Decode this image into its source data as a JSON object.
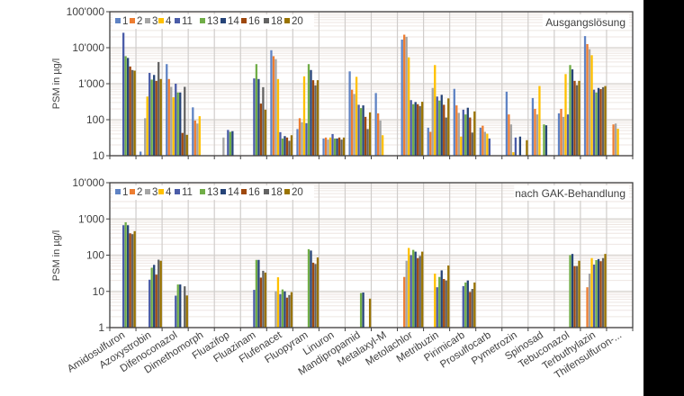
{
  "y_axis_label": "PSM in µg/l",
  "series_colors": {
    "1": "#5f83c4",
    "2": "#ed7d31",
    "3": "#a5a5a5",
    "4": "#ffc000",
    "11": "#4a5ca8",
    "13": "#70ad47",
    "14": "#264478",
    "16": "#9e480e",
    "18": "#636363",
    "20": "#997300"
  },
  "chart_data": [
    {
      "type": "bar",
      "title": "Ausgangslösung",
      "ylabel": "PSM in µg/l",
      "yscale": "log",
      "ylim": [
        10,
        100000
      ],
      "yticks": [
        "100'000",
        "10'000",
        "1'000",
        "100",
        "10"
      ],
      "grid": true,
      "legend": "top-left",
      "categories": [
        "Amidosulfuron",
        "Azoxystrobin",
        "Difenoconazol",
        "Dimethomorph",
        "Fluazifop",
        "Fluazinam",
        "Flufenacet",
        "Fluopyram",
        "Linuron",
        "Mandipropamid",
        "Metalaxyl-M",
        "Metolachlor",
        "Metribuzin",
        "Pirimicarb",
        "Prosulfocarb",
        "Pymetrozin",
        "Spinosad",
        "Tebuconazol",
        "Terbuthylazin",
        "Thifensulfuron-..."
      ],
      "series": [
        {
          "name": "1",
          "values": [
            null,
            13,
            3500,
            220,
            null,
            null,
            8500,
            55,
            30,
            2200,
            550,
            16800,
            60,
            720,
            60,
            600,
            400,
            150,
            21000,
            null
          ]
        },
        {
          "name": "2",
          "values": [
            null,
            null,
            1350,
            95,
            null,
            null,
            5800,
            110,
            32,
            680,
            150,
            23000,
            46,
            250,
            68,
            140,
            200,
            200,
            12600,
            74
          ]
        },
        {
          "name": "3",
          "values": [
            null,
            110,
            820,
            78,
            32,
            null,
            4800,
            85,
            28,
            520,
            95,
            20000,
            760,
            155,
            46,
            74,
            140,
            120,
            9100,
            78
          ]
        },
        {
          "name": "4",
          "values": [
            null,
            440,
            420,
            125,
            null,
            null,
            1350,
            1600,
            32,
            1550,
            37,
            5400,
            3300,
            34,
            41,
            12.5,
            860,
            1850,
            6200,
            56
          ]
        },
        {
          "name": "11",
          "values": [
            26000,
            2000,
            1000,
            null,
            52,
            1400,
            45,
            80,
            40,
            260,
            null,
            350,
            440,
            190,
            30,
            32,
            null,
            140,
            680,
            null
          ]
        },
        {
          "name": "13",
          "values": [
            5800,
            1300,
            570,
            null,
            46,
            3500,
            30,
            3500,
            30,
            210,
            null,
            270,
            340,
            140,
            null,
            null,
            74,
            3300,
            570,
            null
          ]
        },
        {
          "name": "14",
          "values": [
            5200,
            1750,
            570,
            null,
            48,
            1350,
            35,
            2400,
            30,
            250,
            null,
            310,
            490,
            215,
            null,
            34,
            70,
            2500,
            760,
            null
          ]
        },
        {
          "name": "16",
          "values": [
            3000,
            1200,
            43,
            null,
            null,
            280,
            32,
            1250,
            32,
            120,
            null,
            270,
            260,
            115,
            null,
            null,
            null,
            1200,
            710,
            null
          ]
        },
        {
          "name": "18",
          "values": [
            2400,
            4000,
            820,
            null,
            null,
            800,
            26,
            900,
            28,
            55,
            null,
            240,
            115,
            44,
            null,
            null,
            null,
            910,
            800,
            null
          ]
        },
        {
          "name": "20",
          "values": [
            2300,
            1350,
            38,
            null,
            null,
            190,
            37,
            1250,
            32,
            160,
            null,
            315,
            390,
            170,
            null,
            27,
            null,
            1200,
            860,
            null
          ]
        }
      ]
    },
    {
      "type": "bar",
      "title": "nach GAK-Behandlung",
      "ylabel": "PSM in µg/l",
      "yscale": "log",
      "ylim": [
        1,
        10000
      ],
      "yticks": [
        "10'000",
        "1'000",
        "100",
        "10",
        "1"
      ],
      "grid": true,
      "legend": "top-left",
      "categories": [
        "Amidosulfuron",
        "Azoxystrobin",
        "Difenoconazol",
        "Dimethomorph",
        "Fluazifop",
        "Fluazinam",
        "Flufenacet",
        "Fluopyram",
        "Linuron",
        "Mandipropamid",
        "Metalaxyl-M",
        "Metolachlor",
        "Metribuzin",
        "Pirimicarb",
        "Prosulfocarb",
        "Pymetrozin",
        "Spinosad",
        "Tebuconazol",
        "Terbuthylazin",
        "Thifensulfuron-..."
      ],
      "series": [
        {
          "name": "1",
          "values": [
            null,
            null,
            null,
            null,
            null,
            null,
            null,
            null,
            null,
            null,
            null,
            null,
            null,
            null,
            null,
            null,
            null,
            null,
            null,
            null
          ]
        },
        {
          "name": "2",
          "values": [
            null,
            null,
            null,
            null,
            null,
            null,
            null,
            null,
            null,
            null,
            null,
            25,
            null,
            null,
            null,
            null,
            null,
            null,
            13,
            null
          ]
        },
        {
          "name": "3",
          "values": [
            null,
            null,
            null,
            null,
            null,
            null,
            10,
            null,
            null,
            null,
            null,
            70,
            null,
            null,
            null,
            null,
            null,
            null,
            31,
            null
          ]
        },
        {
          "name": "4",
          "values": [
            null,
            null,
            null,
            null,
            null,
            null,
            24.5,
            null,
            null,
            null,
            null,
            158,
            31,
            null,
            null,
            null,
            null,
            null,
            83,
            null
          ]
        },
        {
          "name": "11",
          "values": [
            670,
            21,
            7.6,
            null,
            null,
            11,
            8.4,
            null,
            null,
            null,
            null,
            100,
            13,
            14,
            null,
            null,
            null,
            null,
            55,
            null
          ]
        },
        {
          "name": "13",
          "values": [
            810,
            45,
            15.5,
            null,
            null,
            74,
            11.3,
            146,
            null,
            9,
            null,
            140,
            25,
            17.6,
            null,
            null,
            null,
            100,
            73,
            null
          ]
        },
        {
          "name": "14",
          "values": [
            670,
            54,
            15.5,
            null,
            null,
            74,
            10,
            134,
            null,
            9.3,
            null,
            125,
            38,
            20,
            null,
            null,
            null,
            108,
            78,
            null
          ]
        },
        {
          "name": "16",
          "values": [
            400,
            29,
            null,
            null,
            null,
            24,
            6.7,
            62,
            null,
            null,
            null,
            83,
            22,
            9.6,
            null,
            null,
            null,
            50,
            68,
            null
          ]
        },
        {
          "name": "18",
          "values": [
            380,
            75,
            13.8,
            null,
            null,
            37,
            7.9,
            57,
            null,
            null,
            null,
            95,
            20,
            11.7,
            null,
            null,
            null,
            50,
            83,
            null
          ]
        },
        {
          "name": "20",
          "values": [
            460,
            70,
            7.7,
            null,
            null,
            33,
            9.5,
            86,
            null,
            6.3,
            null,
            125,
            52,
            17.6,
            null,
            null,
            null,
            70,
            108,
            null
          ]
        }
      ]
    }
  ]
}
